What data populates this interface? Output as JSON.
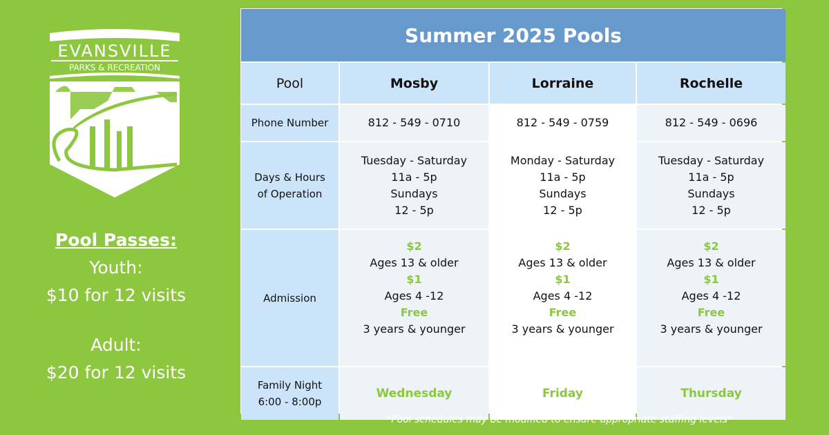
{
  "logo": {
    "line1": "EVANSVILLE",
    "line2": "PARKS & RECREATION"
  },
  "passes": {
    "title": "Pool Passes:",
    "youth_label": "Youth:",
    "youth_price": "$10 for 12 visits",
    "adult_label": "Adult:",
    "adult_price": "$20 for 12 visits"
  },
  "table": {
    "title": "Summer 2025 Pools",
    "row_labels": {
      "pool": "Pool",
      "phone": "Phone Number",
      "hours_1": "Days & Hours",
      "hours_2": "of Operation",
      "admission": "Admission",
      "family_1": "Family Night",
      "family_2": "6:00 - 8:00p"
    },
    "pools": [
      {
        "name": "Mosby",
        "phone": "812 - 549 - 0710",
        "days": "Tuesday - Saturday",
        "hours": "11a - 5p",
        "sun": "Sundays",
        "sun_hours": "12 - 5p",
        "family": "Wednesday"
      },
      {
        "name": "Lorraine",
        "phone": "812 - 549 - 0759",
        "days": "Monday - Saturday",
        "hours": "11a - 5p",
        "sun": "Sundays",
        "sun_hours": "12 - 5p",
        "family": "Friday"
      },
      {
        "name": "Rochelle",
        "phone": "812 - 549 - 0696",
        "days": "Tuesday - Saturday",
        "hours": "11a - 5p",
        "sun": "Sundays",
        "sun_hours": "12 - 5p",
        "family": "Thursday"
      }
    ],
    "admission": {
      "p1": "$2",
      "a1": "Ages 13 & older",
      "p2": "$1",
      "a2": "Ages 4 -12",
      "p3": "Free",
      "a3": "3 years & younger"
    }
  },
  "note": "*Pool schedules may be modified to ensure appropriate staffing levels*",
  "colors": {
    "background": "#8dc63f",
    "title_bar": "#6699cc",
    "header": "#cce4fa",
    "accent_text": "#8dc63f"
  }
}
